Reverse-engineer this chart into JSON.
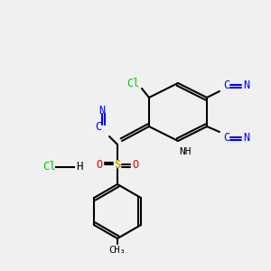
{
  "bg_color": "#f0f0f0",
  "atom_colors": {
    "C": "#000000",
    "N": "#0000ff",
    "O": "#ff0000",
    "S": "#ccaa00",
    "Cl": "#00cc00",
    "H": "#000000"
  },
  "bond_color": "#000000",
  "title": ""
}
